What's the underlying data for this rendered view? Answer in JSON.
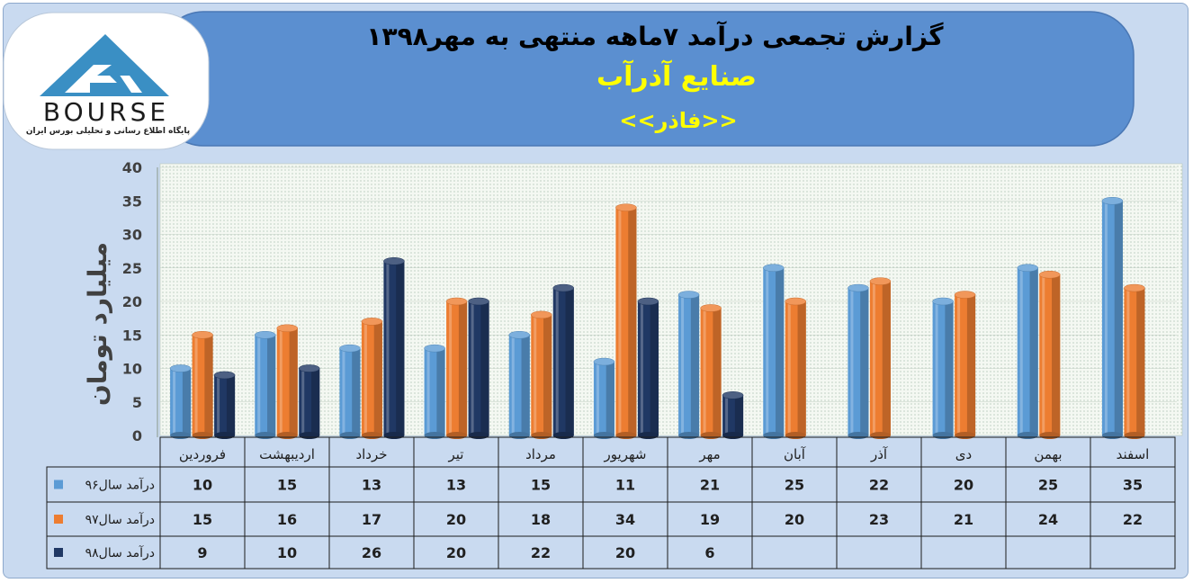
{
  "header": {
    "title": "گزارش تجمعی درآمد ۷ماهه منتهی به مهر۱۳۹۸",
    "company": "صنایع آذرآب",
    "symbol": "<<فاذر>>"
  },
  "logo": {
    "brand": "BOURSE",
    "tagline": "پایگاه اطلاع رسانی و تحلیلی بورس ایران"
  },
  "colors": {
    "frame_bg": "#c9daf0",
    "header_bg": "#5b8fd0",
    "title_text": "#000000",
    "company_text": "#ffff00",
    "plot_bg": "#f3f7f2",
    "series_96": "#5b9bd5",
    "series_97": "#ed7d31",
    "series_98": "#203864"
  },
  "chart_data": {
    "type": "bar",
    "title": "",
    "xlabel": "",
    "ylabel": "میلیارد تومان",
    "ylim": [
      0,
      40
    ],
    "yticks": [
      0,
      5,
      10,
      15,
      20,
      25,
      30,
      35,
      40
    ],
    "grid": true,
    "legend": "data-table-left",
    "categories": [
      "فروردین",
      "اردیبهشت",
      "خرداد",
      "تیر",
      "مرداد",
      "شهریور",
      "مهر",
      "آبان",
      "آذر",
      "دی",
      "بهمن",
      "اسفند"
    ],
    "series": [
      {
        "name": "درآمد سال۹۶",
        "color": "#5b9bd5",
        "values": [
          10,
          15,
          13,
          13,
          15,
          11,
          21,
          25,
          22,
          20,
          25,
          35
        ]
      },
      {
        "name": "درآمد سال۹۷",
        "color": "#ed7d31",
        "values": [
          15,
          16,
          17,
          20,
          18,
          34,
          19,
          20,
          23,
          21,
          24,
          22
        ]
      },
      {
        "name": "درآمد سال۹۸",
        "color": "#203864",
        "values": [
          9,
          10,
          26,
          20,
          22,
          20,
          6,
          null,
          null,
          null,
          null,
          null
        ]
      }
    ]
  }
}
